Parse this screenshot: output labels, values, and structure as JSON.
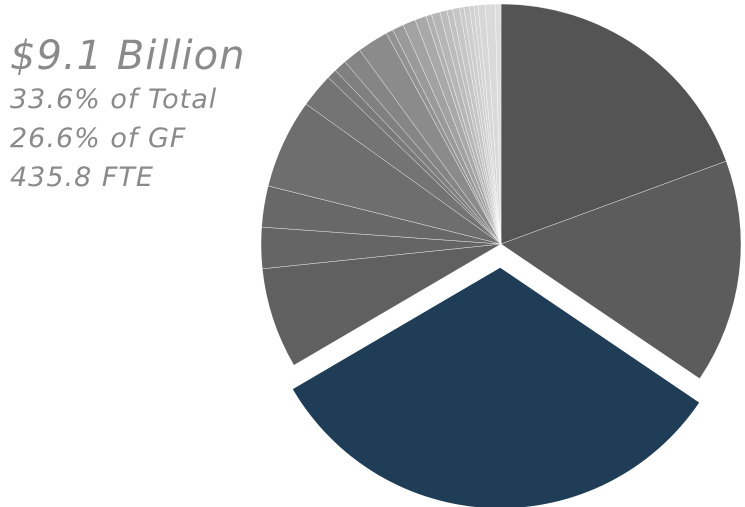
{
  "stats": {
    "amount": "$9.1 Billion",
    "pct_total": "33.6% of Total",
    "pct_gf": "26.6% of GF",
    "fte": "435.8 FTE"
  },
  "chart_data": {
    "type": "pie",
    "start": "12 o'clock",
    "direction": "clockwise",
    "highlight_index": 2,
    "values": [
      20.3,
      15.8,
      33.6,
      7.1,
      2.9,
      2.9,
      6.3,
      2.4,
      0.7,
      0.9,
      1.3,
      2.2,
      0.5,
      0.8,
      0.9,
      0.8,
      0.4,
      0.6,
      0.5,
      0.4,
      0.5,
      0.3,
      0.4,
      0.3,
      0.3,
      0.5,
      0.7,
      0.4
    ],
    "colors": [
      "#545454",
      "#5c5c5c",
      "#1f3d56",
      "#606060",
      "#656565",
      "#686868",
      "#6e6e6e",
      "#747474",
      "#7a7a7a",
      "#808080",
      "#858585",
      "#8b8b8b",
      "#929292",
      "#9a9a9a",
      "#a2a2a2",
      "#a9a9a9",
      "#b0b0b0",
      "#b6b6b6",
      "#bcbcbc",
      "#c1c1c1",
      "#c6c6c6",
      "#cacaca",
      "#cecece",
      "#d1d1d1",
      "#d4d4d4",
      "#d7d7d7",
      "#dadada",
      "#dcdcdc"
    ]
  }
}
